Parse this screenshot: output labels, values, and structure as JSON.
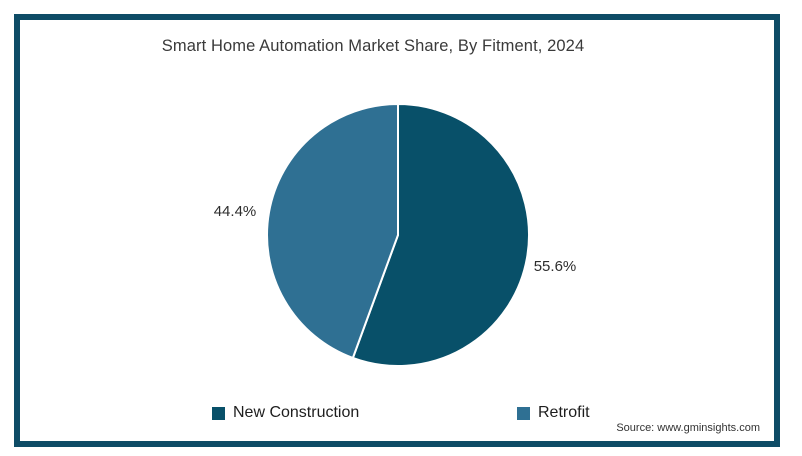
{
  "title": "Smart Home Automation Market Share, By Fitment, 2024",
  "source_note": "Source: www.gminsights.com",
  "frame": {
    "border_color": "#0e4c66"
  },
  "chart_data": {
    "type": "pie",
    "title": "Smart Home Automation Market Share, By Fitment, 2024",
    "start_angle_deg": 0,
    "direction": "clockwise",
    "legend_position": "bottom",
    "label_position": "outside",
    "slices": [
      {
        "label": "New Construction",
        "value": 55.6,
        "display": "55.6%",
        "color": "#085069"
      },
      {
        "label": "Retrofit",
        "value": 44.4,
        "display": "44.4%",
        "color": "#2f7093"
      }
    ]
  },
  "legend": {
    "items": [
      {
        "label": "New Construction",
        "color": "#085069"
      },
      {
        "label": "Retrofit",
        "color": "#2f7093"
      }
    ]
  }
}
